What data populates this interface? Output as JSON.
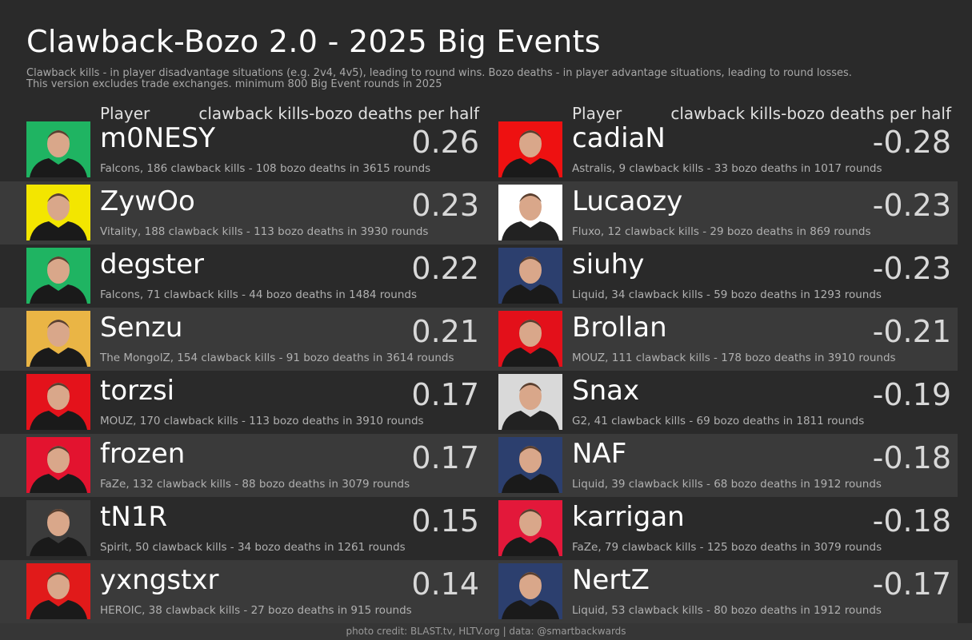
{
  "title": "Clawback-Bozo 2.0 - 2025 Big Events",
  "subtitle_line1": "Clawback kills - in player disadvantage situations (e.g. 2v4, 4v5), leading to round wins. Bozo deaths - in player advantage situations, leading to round losses.",
  "subtitle_line2": "This version excludes trade exchanges. minimum 800 Big Event rounds in 2025",
  "footer": "photo credit: BLAST.tv, HLTV.org | data: @smartbackwards",
  "chart_data": {
    "type": "table",
    "columns": [
      "Player",
      "clawback kills-bozo deaths per half"
    ],
    "left": [
      {
        "name": "m0NESY",
        "value": "0.26",
        "detail": "Falcons, 186 clawback kills - 108 bozo deaths in 3615 rounds",
        "photo_bg": "#1fb462"
      },
      {
        "name": "ZywOo",
        "value": "0.23",
        "detail": "Vitality, 188 clawback kills - 113 bozo deaths in 3930 rounds",
        "photo_bg": "#f3e600"
      },
      {
        "name": "degster",
        "value": "0.22",
        "detail": "Falcons, 71 clawback kills - 44 bozo deaths in 1484 rounds",
        "photo_bg": "#1fb462"
      },
      {
        "name": "Senzu",
        "value": "0.21",
        "detail": "The MongolZ, 154 clawback kills - 91 bozo deaths in 3614 rounds",
        "photo_bg": "#eab545"
      },
      {
        "name": "torzsi",
        "value": "0.17",
        "detail": "MOUZ, 170 clawback kills - 113 bozo deaths in 3910 rounds",
        "photo_bg": "#e4121b"
      },
      {
        "name": "frozen",
        "value": "0.17",
        "detail": "FaZe, 132 clawback kills - 88 bozo deaths in 3079 rounds",
        "photo_bg": "#e3132f"
      },
      {
        "name": "tN1R",
        "value": "0.15",
        "detail": "Spirit, 50 clawback kills - 34 bozo deaths in 1261 rounds",
        "photo_bg": "#3b3b3b"
      },
      {
        "name": "yxngstxr",
        "value": "0.14",
        "detail": "HEROIC, 38 clawback kills - 27 bozo deaths in 915 rounds",
        "photo_bg": "#e11a1a"
      }
    ],
    "right": [
      {
        "name": "cadiaN",
        "value": "-0.28",
        "detail": "Astralis, 9 clawback kills - 33 bozo deaths in 1017 rounds",
        "photo_bg": "#ee1111"
      },
      {
        "name": "Lucaozy",
        "value": "-0.23",
        "detail": "Fluxo, 12 clawback kills - 29 bozo deaths in 869 rounds",
        "photo_bg": "#ffffff"
      },
      {
        "name": "siuhy",
        "value": "-0.23",
        "detail": "Liquid, 34 clawback kills - 59 bozo deaths in 1293 rounds",
        "photo_bg": "#2c3f6e"
      },
      {
        "name": "Brollan",
        "value": "-0.21",
        "detail": "MOUZ, 111 clawback kills - 178 bozo deaths in 3910 rounds",
        "photo_bg": "#e3101a"
      },
      {
        "name": "Snax",
        "value": "-0.19",
        "detail": "G2, 41 clawback kills - 69 bozo deaths in 1811 rounds",
        "photo_bg": "#d9d9d9"
      },
      {
        "name": "NAF",
        "value": "-0.18",
        "detail": "Liquid, 39 clawback kills - 68 bozo deaths in 1912 rounds",
        "photo_bg": "#2c3f6e"
      },
      {
        "name": "karrigan",
        "value": "-0.18",
        "detail": "FaZe, 79 clawback kills - 125 bozo deaths in 3079 rounds",
        "photo_bg": "#e3183a"
      },
      {
        "name": "NertZ",
        "value": "-0.17",
        "detail": "Liquid, 53 clawback kills - 80 bozo deaths in 1912 rounds",
        "photo_bg": "#2c3f6e"
      }
    ]
  }
}
